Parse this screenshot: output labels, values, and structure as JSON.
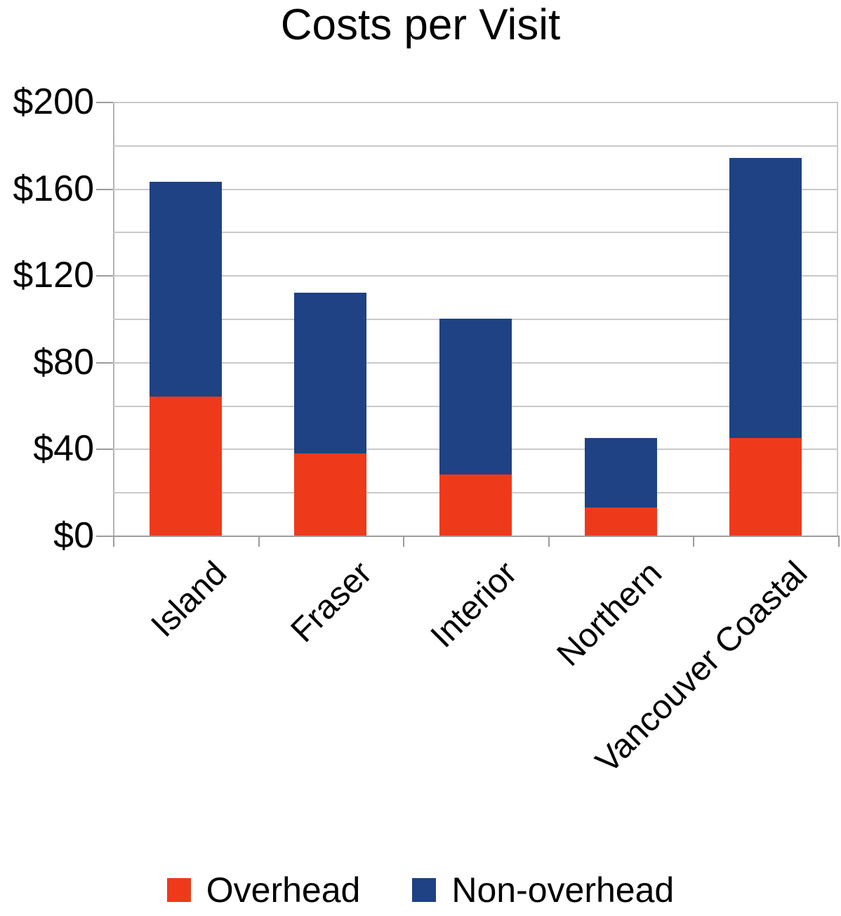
{
  "title": "Costs per Visit",
  "chart_data": {
    "type": "bar",
    "stacked": true,
    "title": "Costs per Visit",
    "categories": [
      "Island",
      "Fraser",
      "Interior",
      "Northern",
      "Vancouver Coastal"
    ],
    "series": [
      {
        "name": "Overhead",
        "color": "#ee3a1b",
        "values": [
          64,
          38,
          28,
          13,
          45
        ]
      },
      {
        "name": "Non-overhead",
        "color": "#1e4283",
        "values": [
          99,
          74,
          72,
          32,
          129
        ]
      }
    ],
    "stack_totals": [
      163,
      112,
      100,
      45,
      174
    ],
    "ylabel": "",
    "xlabel": "",
    "ylim": [
      0,
      200
    ],
    "ytick_interval": 40,
    "minor_gridline_interval": 20,
    "ytick_labels": [
      "$0",
      "$40",
      "$80",
      "$120",
      "$160",
      "$200"
    ],
    "currency_prefix": "$",
    "grid": true,
    "legend_position": "bottom",
    "category_label_rotation_deg": 45
  },
  "legend": {
    "items": [
      {
        "label": "Overhead",
        "color": "#ee3a1b"
      },
      {
        "label": "Non-overhead",
        "color": "#1e4283"
      }
    ]
  },
  "colors": {
    "overhead": "#ee3a1b",
    "non_overhead": "#1e4283",
    "gridline": "#c9c9c9",
    "axis": "#9c9c9c",
    "text": "#000000",
    "background": "#ffffff"
  }
}
